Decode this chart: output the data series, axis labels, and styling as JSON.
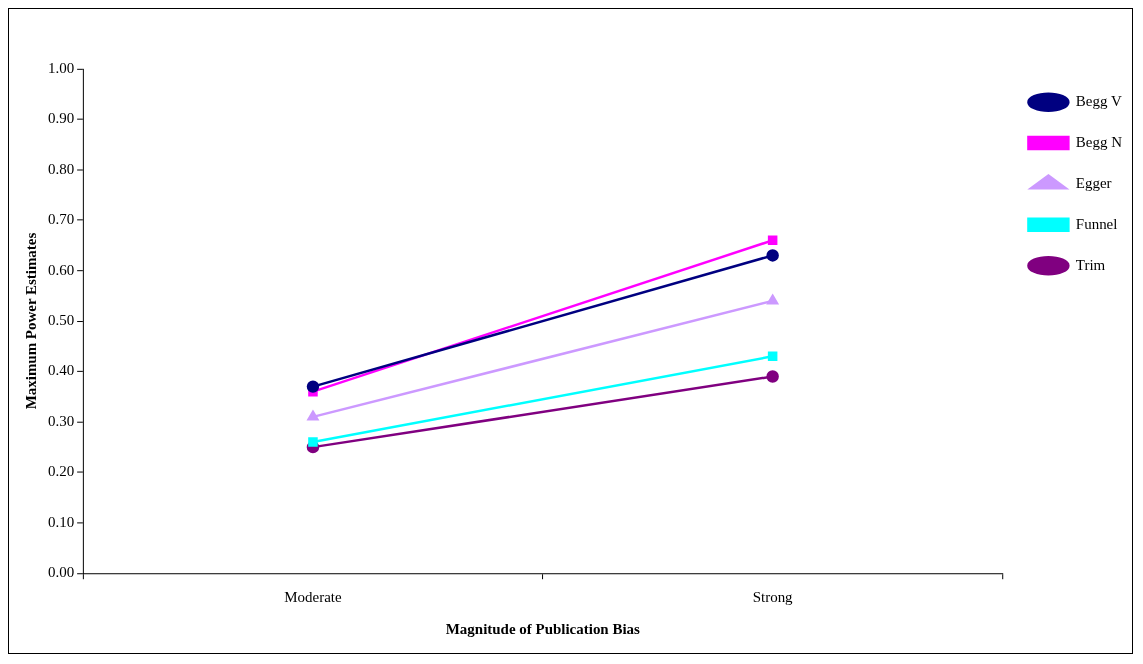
{
  "chart_data": {
    "type": "line",
    "xlabel": "Magnitude of Publication Bias",
    "ylabel": "Maximum Power Estimates",
    "categories": [
      "Moderate",
      "Strong"
    ],
    "series": [
      {
        "name": "Begg V",
        "color": "#000080",
        "marker": "circle",
        "values": [
          0.37,
          0.63
        ]
      },
      {
        "name": "Begg N",
        "color": "#ff00ff",
        "marker": "square",
        "values": [
          0.36,
          0.66
        ]
      },
      {
        "name": "Egger",
        "color": "#cc99ff",
        "marker": "triangle",
        "values": [
          0.31,
          0.54
        ]
      },
      {
        "name": "Funnel",
        "color": "#00ffff",
        "marker": "square",
        "values": [
          0.26,
          0.43
        ]
      },
      {
        "name": "Trim",
        "color": "#800080",
        "marker": "circle",
        "values": [
          0.25,
          0.39
        ]
      }
    ],
    "ylim": [
      0,
      1
    ],
    "yticks": [
      {
        "value": 0,
        "label": "0.00"
      },
      {
        "value": 0.1,
        "label": "0.10"
      },
      {
        "value": 0.2,
        "label": "0.20"
      },
      {
        "value": 0.3,
        "label": "0.30"
      },
      {
        "value": 0.4,
        "label": "0.40"
      },
      {
        "value": 0.5,
        "label": "0.50"
      },
      {
        "value": 0.6,
        "label": "0.60"
      },
      {
        "value": 0.7,
        "label": "0.70"
      },
      {
        "value": 0.8,
        "label": "0.80"
      },
      {
        "value": 0.9,
        "label": "0.90"
      },
      {
        "value": 1,
        "label": "1.00"
      }
    ],
    "grid": false,
    "legend": "right",
    "line_style": "solid"
  }
}
